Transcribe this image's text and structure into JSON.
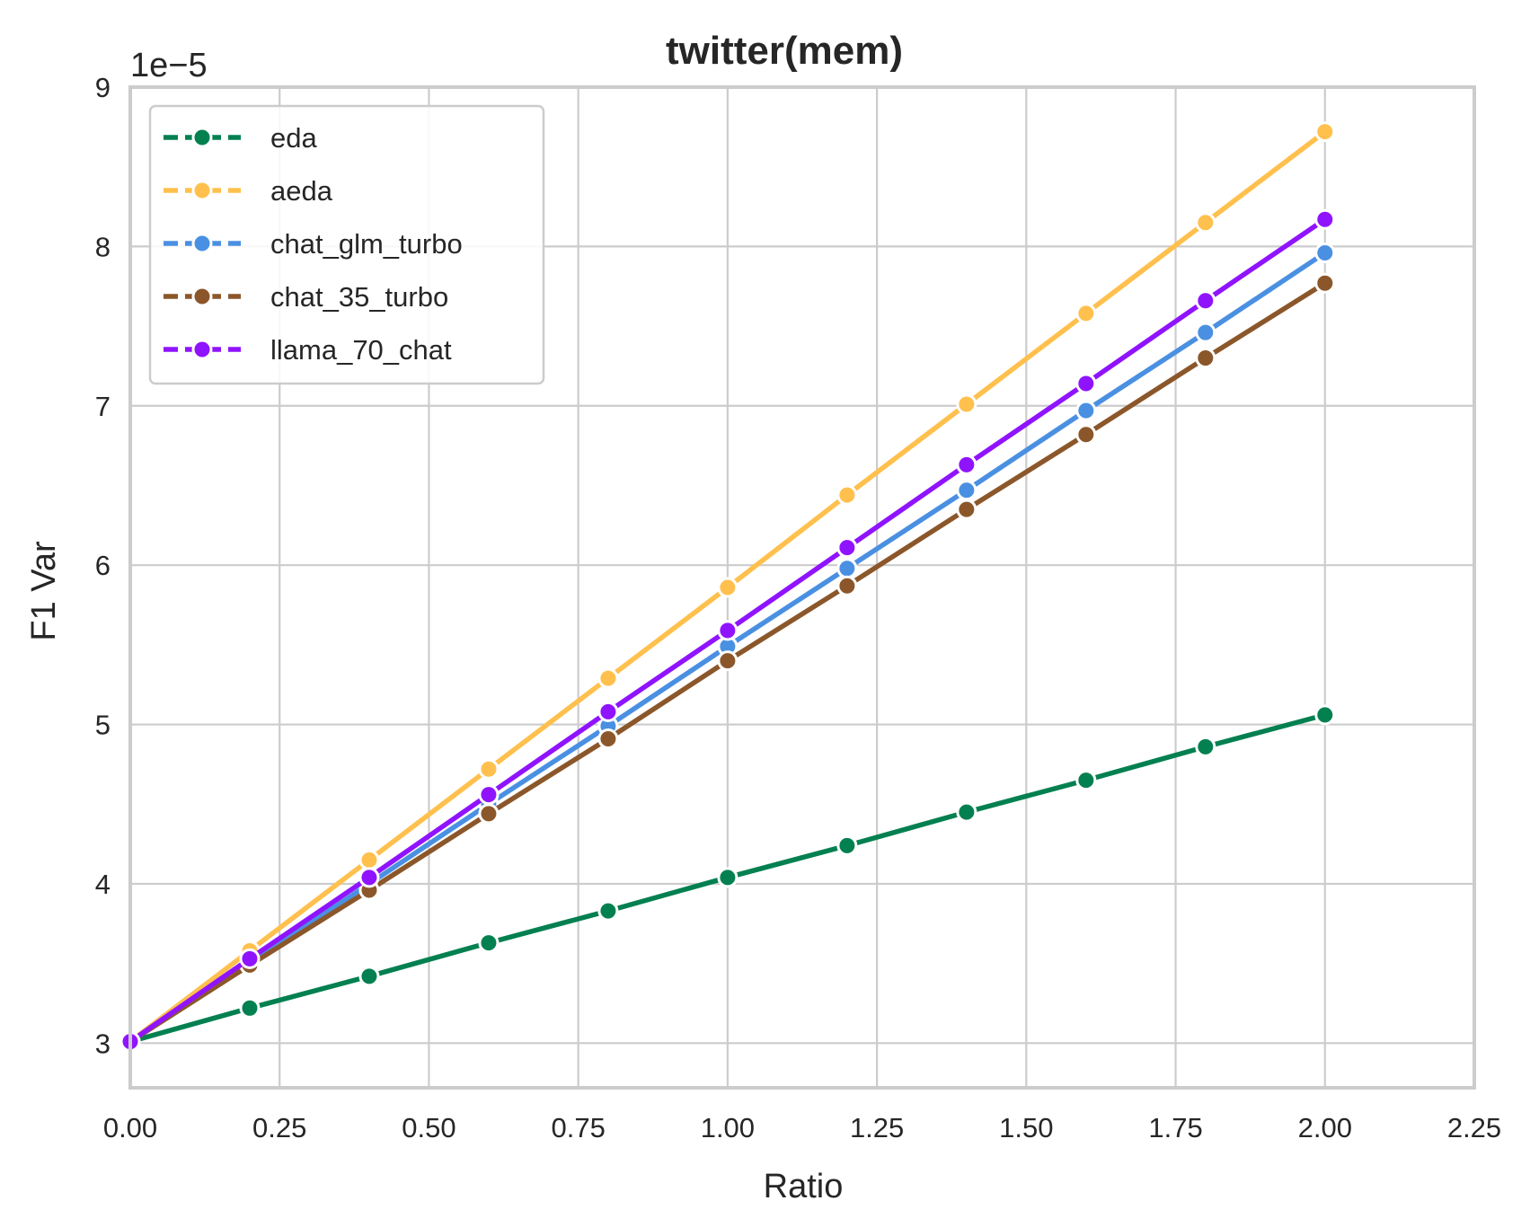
{
  "chart_data": {
    "type": "line",
    "title": "twitter(mem)",
    "xlabel": "Ratio",
    "ylabel": "F1 Var",
    "y_offset_label": "1e−5",
    "xlim": [
      0.0,
      2.25
    ],
    "ylim": [
      2.72,
      9.0
    ],
    "x_ticks": [
      0.0,
      0.25,
      0.5,
      0.75,
      1.0,
      1.25,
      1.5,
      1.75,
      2.0,
      2.25
    ],
    "x_tick_labels": [
      "0.00",
      "0.25",
      "0.50",
      "0.75",
      "1.00",
      "1.25",
      "1.50",
      "1.75",
      "2.00",
      "2.25"
    ],
    "y_ticks": [
      3,
      4,
      5,
      6,
      7,
      8,
      9
    ],
    "y_tick_labels": [
      "3",
      "4",
      "5",
      "6",
      "7",
      "8",
      "9"
    ],
    "grid": true,
    "legend_position": "top-left",
    "x": [
      0.0,
      0.2,
      0.4,
      0.6,
      0.8,
      1.0,
      1.2,
      1.4,
      1.6,
      1.8,
      2.0
    ],
    "series": [
      {
        "name": "eda",
        "color": "#038050",
        "values": [
          3.01,
          3.22,
          3.42,
          3.63,
          3.83,
          4.04,
          4.24,
          4.45,
          4.65,
          4.86,
          5.06
        ]
      },
      {
        "name": "aeda",
        "color": "#FFC04D",
        "values": [
          3.01,
          3.58,
          4.15,
          4.72,
          5.29,
          5.86,
          6.44,
          7.01,
          7.58,
          8.15,
          8.72
        ]
      },
      {
        "name": "chat_glm_turbo",
        "color": "#4A90E2",
        "values": [
          3.01,
          3.5,
          4.0,
          4.5,
          4.99,
          5.49,
          5.98,
          6.47,
          6.97,
          7.46,
          7.96
        ]
      },
      {
        "name": "chat_35_turbo",
        "color": "#8B572A",
        "values": [
          3.01,
          3.49,
          3.96,
          4.44,
          4.91,
          5.4,
          5.87,
          6.35,
          6.82,
          7.3,
          7.77
        ]
      },
      {
        "name": "llama_70_chat",
        "color": "#9013FE",
        "values": [
          3.01,
          3.53,
          4.04,
          4.56,
          5.08,
          5.59,
          6.11,
          6.63,
          7.14,
          7.66,
          8.17
        ]
      }
    ]
  }
}
